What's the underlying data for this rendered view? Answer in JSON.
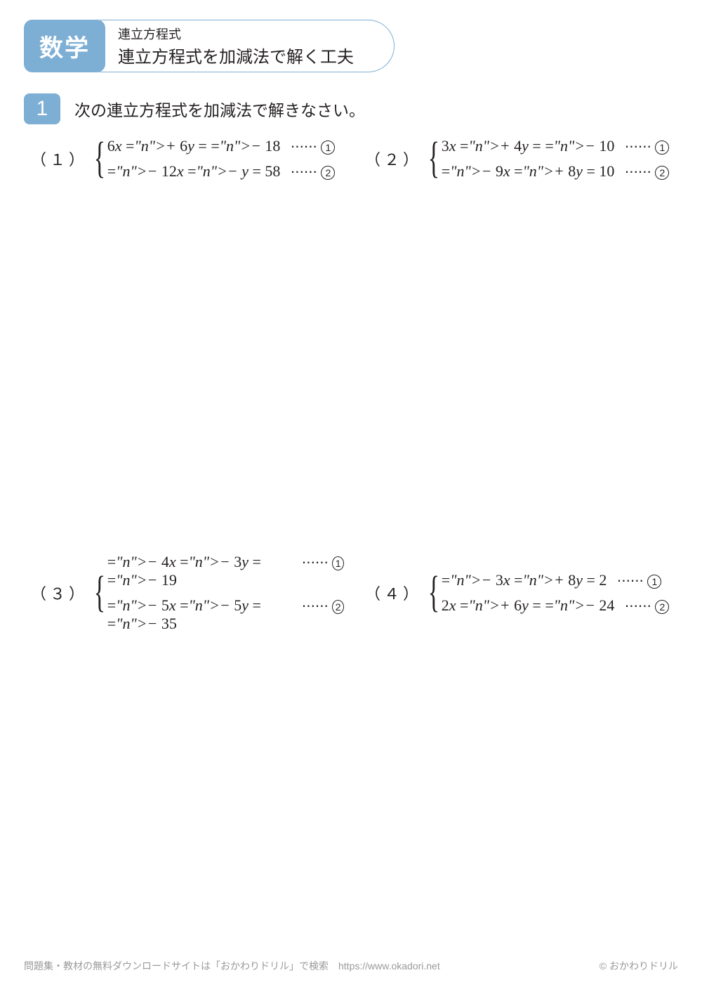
{
  "header": {
    "subject": "数学",
    "topic_small": "連立方程式",
    "topic_large": "連立方程式を加減法で解く工夫"
  },
  "section": {
    "number": "1",
    "instruction": "次の連立方程式を加減法で解きなさい。"
  },
  "problems": [
    {
      "label": "（１）",
      "eq1": "6x + 6y = − 18",
      "eq2": "− 12x − y = 58",
      "mark1": "1",
      "mark2": "2"
    },
    {
      "label": "（２）",
      "eq1": "3x + 4y = − 10",
      "eq2": "− 9x + 8y = 10",
      "mark1": "1",
      "mark2": "2"
    },
    {
      "label": "（３）",
      "eq1": "− 4x − 3y = − 19",
      "eq2": "− 5x − 5y = − 35",
      "mark1": "1",
      "mark2": "2"
    },
    {
      "label": "（４）",
      "eq1": "− 3x + 8y = 2",
      "eq2": "2x + 6y = − 24",
      "mark1": "1",
      "mark2": "2"
    }
  ],
  "footer": {
    "left": "問題集・教材の無料ダウンロードサイトは「おかわりドリル」で検索　https://www.okadori.net",
    "right": "© おかわりドリル"
  },
  "style": {
    "accent_color": "#7daed4",
    "text_color": "#231f20",
    "footer_color": "#9a9a9a",
    "background": "#ffffff",
    "subject_fontsize": 34,
    "title_small_fontsize": 18,
    "title_large_fontsize": 24,
    "section_num_fontsize": 30,
    "instruction_fontsize": 23,
    "equation_fontsize": 22,
    "footer_fontsize": 14
  }
}
